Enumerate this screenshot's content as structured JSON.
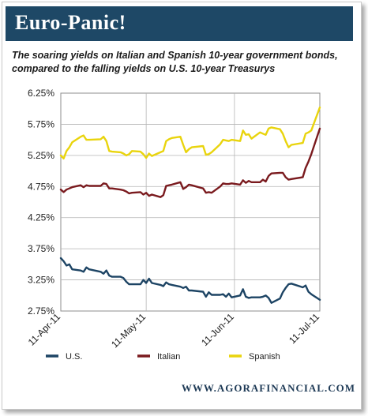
{
  "header": {
    "title": "Euro-Panic!"
  },
  "subtitle": {
    "line1": "The soaring yields on Italian and Spanish 10-year government bonds,",
    "line2": "compared to the falling yields on U.S. 10-year Treasurys"
  },
  "footer": {
    "site": "WWW.AGORAFINANCIAL.COM"
  },
  "colors": {
    "header_bg": "#1e4866",
    "us": "#1d4464",
    "italian": "#7a1a1e",
    "spanish": "#e9d40d",
    "grid": "#b5b5b5"
  },
  "chart_data": {
    "type": "line",
    "title": "",
    "xlabel": "",
    "ylabel": "",
    "ylim": [
      2.75,
      6.25
    ],
    "yticks": [
      "2.75%",
      "3.25%",
      "3.75%",
      "4.25%",
      "4.75%",
      "5.25%",
      "5.75%",
      "6.25%"
    ],
    "ytick_values": [
      2.75,
      3.25,
      3.75,
      4.25,
      4.75,
      5.25,
      5.75,
      6.25
    ],
    "xlim": [
      "2011-04-11",
      "2011-07-11"
    ],
    "xticks": [
      "11-Apr-11",
      "11-May-11",
      "11-Jun-11",
      "11-Jul-11"
    ],
    "xtick_dates": [
      "2011-04-11",
      "2011-05-11",
      "2011-06-11",
      "2011-07-11"
    ],
    "grid": true,
    "legend_position": "bottom",
    "series": [
      {
        "name": "U.S.",
        "color": "#1d4464",
        "points": [
          [
            "2011-04-11",
            3.6
          ],
          [
            "2011-04-12",
            3.55
          ],
          [
            "2011-04-13",
            3.48
          ],
          [
            "2011-04-14",
            3.5
          ],
          [
            "2011-04-15",
            3.42
          ],
          [
            "2011-04-18",
            3.4
          ],
          [
            "2011-04-19",
            3.38
          ],
          [
            "2011-04-20",
            3.45
          ],
          [
            "2011-04-21",
            3.42
          ],
          [
            "2011-04-25",
            3.38
          ],
          [
            "2011-04-26",
            3.35
          ],
          [
            "2011-04-27",
            3.4
          ],
          [
            "2011-04-28",
            3.32
          ],
          [
            "2011-04-29",
            3.3
          ],
          [
            "2011-05-02",
            3.3
          ],
          [
            "2011-05-03",
            3.28
          ],
          [
            "2011-05-04",
            3.22
          ],
          [
            "2011-05-05",
            3.18
          ],
          [
            "2011-05-06",
            3.18
          ],
          [
            "2011-05-09",
            3.18
          ],
          [
            "2011-05-10",
            3.25
          ],
          [
            "2011-05-11",
            3.2
          ],
          [
            "2011-05-12",
            3.27
          ],
          [
            "2011-05-13",
            3.2
          ],
          [
            "2011-05-16",
            3.17
          ],
          [
            "2011-05-17",
            3.15
          ],
          [
            "2011-05-18",
            3.21
          ],
          [
            "2011-05-19",
            3.18
          ],
          [
            "2011-05-20",
            3.17
          ],
          [
            "2011-05-23",
            3.14
          ],
          [
            "2011-05-24",
            3.12
          ],
          [
            "2011-05-25",
            3.14
          ],
          [
            "2011-05-26",
            3.08
          ],
          [
            "2011-05-27",
            3.08
          ],
          [
            "2011-05-31",
            3.06
          ],
          [
            "2011-06-01",
            2.98
          ],
          [
            "2011-06-02",
            3.05
          ],
          [
            "2011-06-03",
            3.01
          ],
          [
            "2011-06-06",
            3.01
          ],
          [
            "2011-06-07",
            3.02
          ],
          [
            "2011-06-08",
            2.98
          ],
          [
            "2011-06-09",
            3.03
          ],
          [
            "2011-06-10",
            2.97
          ],
          [
            "2011-06-13",
            3.0
          ],
          [
            "2011-06-14",
            3.1
          ],
          [
            "2011-06-15",
            2.98
          ],
          [
            "2011-06-16",
            2.96
          ],
          [
            "2011-06-17",
            2.97
          ],
          [
            "2011-06-20",
            2.97
          ],
          [
            "2011-06-21",
            2.98
          ],
          [
            "2011-06-22",
            3.0
          ],
          [
            "2011-06-23",
            2.96
          ],
          [
            "2011-06-24",
            2.88
          ],
          [
            "2011-06-27",
            2.95
          ],
          [
            "2011-06-28",
            3.05
          ],
          [
            "2011-06-29",
            3.12
          ],
          [
            "2011-06-30",
            3.18
          ],
          [
            "2011-07-01",
            3.19
          ],
          [
            "2011-07-05",
            3.13
          ],
          [
            "2011-07-06",
            3.16
          ],
          [
            "2011-07-07",
            3.06
          ],
          [
            "2011-07-08",
            3.02
          ],
          [
            "2011-07-11",
            2.93
          ]
        ]
      },
      {
        "name": "Italian",
        "color": "#7a1a1e",
        "points": [
          [
            "2011-04-11",
            4.7
          ],
          [
            "2011-04-12",
            4.66
          ],
          [
            "2011-04-13",
            4.7
          ],
          [
            "2011-04-14",
            4.72
          ],
          [
            "2011-04-15",
            4.74
          ],
          [
            "2011-04-18",
            4.77
          ],
          [
            "2011-04-19",
            4.74
          ],
          [
            "2011-04-20",
            4.77
          ],
          [
            "2011-04-21",
            4.76
          ],
          [
            "2011-04-25",
            4.76
          ],
          [
            "2011-04-26",
            4.8
          ],
          [
            "2011-04-27",
            4.79
          ],
          [
            "2011-04-28",
            4.72
          ],
          [
            "2011-04-29",
            4.72
          ],
          [
            "2011-05-02",
            4.7
          ],
          [
            "2011-05-03",
            4.69
          ],
          [
            "2011-05-04",
            4.67
          ],
          [
            "2011-05-05",
            4.64
          ],
          [
            "2011-05-06",
            4.65
          ],
          [
            "2011-05-09",
            4.66
          ],
          [
            "2011-05-10",
            4.62
          ],
          [
            "2011-05-11",
            4.65
          ],
          [
            "2011-05-12",
            4.6
          ],
          [
            "2011-05-13",
            4.62
          ],
          [
            "2011-05-16",
            4.58
          ],
          [
            "2011-05-17",
            4.61
          ],
          [
            "2011-05-18",
            4.76
          ],
          [
            "2011-05-19",
            4.77
          ],
          [
            "2011-05-20",
            4.78
          ],
          [
            "2011-05-23",
            4.82
          ],
          [
            "2011-05-24",
            4.71
          ],
          [
            "2011-05-25",
            4.74
          ],
          [
            "2011-05-26",
            4.78
          ],
          [
            "2011-05-27",
            4.77
          ],
          [
            "2011-05-31",
            4.72
          ],
          [
            "2011-06-01",
            4.65
          ],
          [
            "2011-06-02",
            4.66
          ],
          [
            "2011-06-03",
            4.65
          ],
          [
            "2011-06-06",
            4.75
          ],
          [
            "2011-06-07",
            4.8
          ],
          [
            "2011-06-08",
            4.79
          ],
          [
            "2011-06-09",
            4.79
          ],
          [
            "2011-06-10",
            4.8
          ],
          [
            "2011-06-13",
            4.78
          ],
          [
            "2011-06-14",
            4.85
          ],
          [
            "2011-06-15",
            4.81
          ],
          [
            "2011-06-16",
            4.84
          ],
          [
            "2011-06-17",
            4.82
          ],
          [
            "2011-06-20",
            4.82
          ],
          [
            "2011-06-21",
            4.86
          ],
          [
            "2011-06-22",
            4.83
          ],
          [
            "2011-06-23",
            4.92
          ],
          [
            "2011-06-24",
            4.96
          ],
          [
            "2011-06-27",
            4.97
          ],
          [
            "2011-06-28",
            4.97
          ],
          [
            "2011-06-29",
            4.9
          ],
          [
            "2011-06-30",
            4.86
          ],
          [
            "2011-07-01",
            4.87
          ],
          [
            "2011-07-05",
            4.9
          ],
          [
            "2011-07-06",
            5.05
          ],
          [
            "2011-07-07",
            5.15
          ],
          [
            "2011-07-08",
            5.27
          ],
          [
            "2011-07-11",
            5.68
          ]
        ]
      },
      {
        "name": "Spanish",
        "color": "#e9d40d",
        "points": [
          [
            "2011-04-11",
            5.25
          ],
          [
            "2011-04-12",
            5.2
          ],
          [
            "2011-04-13",
            5.32
          ],
          [
            "2011-04-14",
            5.38
          ],
          [
            "2011-04-15",
            5.46
          ],
          [
            "2011-04-18",
            5.55
          ],
          [
            "2011-04-19",
            5.57
          ],
          [
            "2011-04-20",
            5.5
          ],
          [
            "2011-04-21",
            5.5
          ],
          [
            "2011-04-25",
            5.51
          ],
          [
            "2011-04-26",
            5.55
          ],
          [
            "2011-04-27",
            5.48
          ],
          [
            "2011-04-28",
            5.32
          ],
          [
            "2011-04-29",
            5.31
          ],
          [
            "2011-05-02",
            5.3
          ],
          [
            "2011-05-03",
            5.28
          ],
          [
            "2011-05-04",
            5.25
          ],
          [
            "2011-05-05",
            5.27
          ],
          [
            "2011-05-06",
            5.32
          ],
          [
            "2011-05-09",
            5.31
          ],
          [
            "2011-05-10",
            5.27
          ],
          [
            "2011-05-11",
            5.21
          ],
          [
            "2011-05-12",
            5.28
          ],
          [
            "2011-05-13",
            5.24
          ],
          [
            "2011-05-16",
            5.3
          ],
          [
            "2011-05-17",
            5.32
          ],
          [
            "2011-05-18",
            5.48
          ],
          [
            "2011-05-19",
            5.51
          ],
          [
            "2011-05-20",
            5.53
          ],
          [
            "2011-05-23",
            5.55
          ],
          [
            "2011-05-24",
            5.42
          ],
          [
            "2011-05-25",
            5.3
          ],
          [
            "2011-05-26",
            5.35
          ],
          [
            "2011-05-27",
            5.38
          ],
          [
            "2011-05-31",
            5.4
          ],
          [
            "2011-06-01",
            5.26
          ],
          [
            "2011-06-02",
            5.27
          ],
          [
            "2011-06-03",
            5.3
          ],
          [
            "2011-06-06",
            5.43
          ],
          [
            "2011-06-07",
            5.5
          ],
          [
            "2011-06-08",
            5.49
          ],
          [
            "2011-06-09",
            5.48
          ],
          [
            "2011-06-10",
            5.5
          ],
          [
            "2011-06-13",
            5.48
          ],
          [
            "2011-06-14",
            5.65
          ],
          [
            "2011-06-15",
            5.58
          ],
          [
            "2011-06-16",
            5.59
          ],
          [
            "2011-06-17",
            5.52
          ],
          [
            "2011-06-20",
            5.62
          ],
          [
            "2011-06-21",
            5.6
          ],
          [
            "2011-06-22",
            5.58
          ],
          [
            "2011-06-23",
            5.68
          ],
          [
            "2011-06-24",
            5.7
          ],
          [
            "2011-06-27",
            5.67
          ],
          [
            "2011-06-28",
            5.6
          ],
          [
            "2011-06-29",
            5.48
          ],
          [
            "2011-06-30",
            5.38
          ],
          [
            "2011-07-01",
            5.42
          ],
          [
            "2011-07-05",
            5.45
          ],
          [
            "2011-07-06",
            5.6
          ],
          [
            "2011-07-07",
            5.62
          ],
          [
            "2011-07-08",
            5.65
          ],
          [
            "2011-07-11",
            6.02
          ]
        ]
      }
    ]
  }
}
